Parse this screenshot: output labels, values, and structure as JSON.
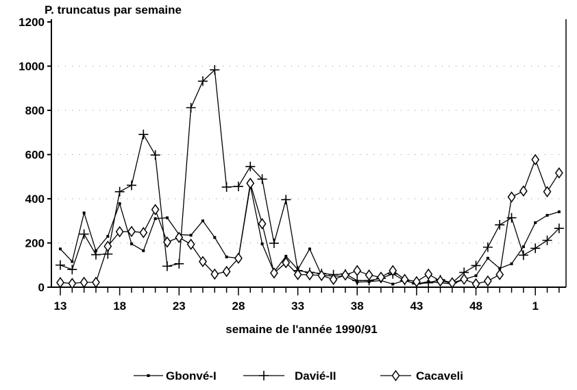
{
  "chart_data": {
    "type": "line",
    "title": "P. truncatus par semaine",
    "xlabel": "semaine de l'année 1990/91",
    "ylabel": "",
    "ylim": [
      0,
      1200
    ],
    "yticks": [
      "0",
      "200",
      "400",
      "600",
      "800",
      "1000",
      "1200"
    ],
    "x": [
      "13",
      "14",
      "15",
      "16",
      "17",
      "18",
      "19",
      "20",
      "21",
      "22",
      "23",
      "24",
      "25",
      "26",
      "27",
      "28",
      "29",
      "30",
      "31",
      "32",
      "33",
      "34",
      "35",
      "36",
      "37",
      "38",
      "39",
      "40",
      "41",
      "42",
      "43",
      "44",
      "45",
      "46",
      "47",
      "48",
      "49",
      "50",
      "51",
      "52",
      "1",
      "2",
      "3"
    ],
    "xtick_labels": [
      "13",
      "18",
      "23",
      "28",
      "33",
      "38",
      "43",
      "48",
      "1"
    ],
    "grid": "dotted",
    "legend_position": "bottom",
    "series": [
      {
        "name": "Gbonvé-I",
        "marker": "dot",
        "values": [
          173,
          116,
          336,
          165,
          230,
          378,
          196,
          165,
          310,
          314,
          238,
          235,
          300,
          225,
          137,
          131,
          460,
          196,
          69,
          140,
          80,
          173,
          54,
          50,
          50,
          23,
          25,
          30,
          14,
          30,
          15,
          25,
          20,
          15,
          35,
          52,
          131,
          85,
          106,
          183,
          292,
          325,
          341
        ]
      },
      {
        "name": "Davié-II",
        "marker": "plus",
        "values": [
          100,
          80,
          240,
          147,
          150,
          432,
          461,
          691,
          598,
          95,
          106,
          812,
          932,
          983,
          453,
          456,
          546,
          489,
          199,
          396,
          75,
          67,
          62,
          57,
          60,
          30,
          30,
          40,
          60,
          30,
          15,
          20,
          34,
          20,
          67,
          98,
          181,
          282,
          314,
          145,
          176,
          212,
          266
        ]
      },
      {
        "name": "Cacaveli",
        "marker": "diamond",
        "values": [
          21,
          17,
          22,
          22,
          185,
          251,
          252,
          247,
          351,
          204,
          225,
          194,
          116,
          59,
          71,
          131,
          470,
          287,
          64,
          111,
          57,
          56,
          53,
          35,
          55,
          75,
          55,
          45,
          75,
          35,
          25,
          59,
          28,
          20,
          36,
          15,
          28,
          57,
          408,
          435,
          577,
          432,
          517
        ]
      }
    ]
  }
}
